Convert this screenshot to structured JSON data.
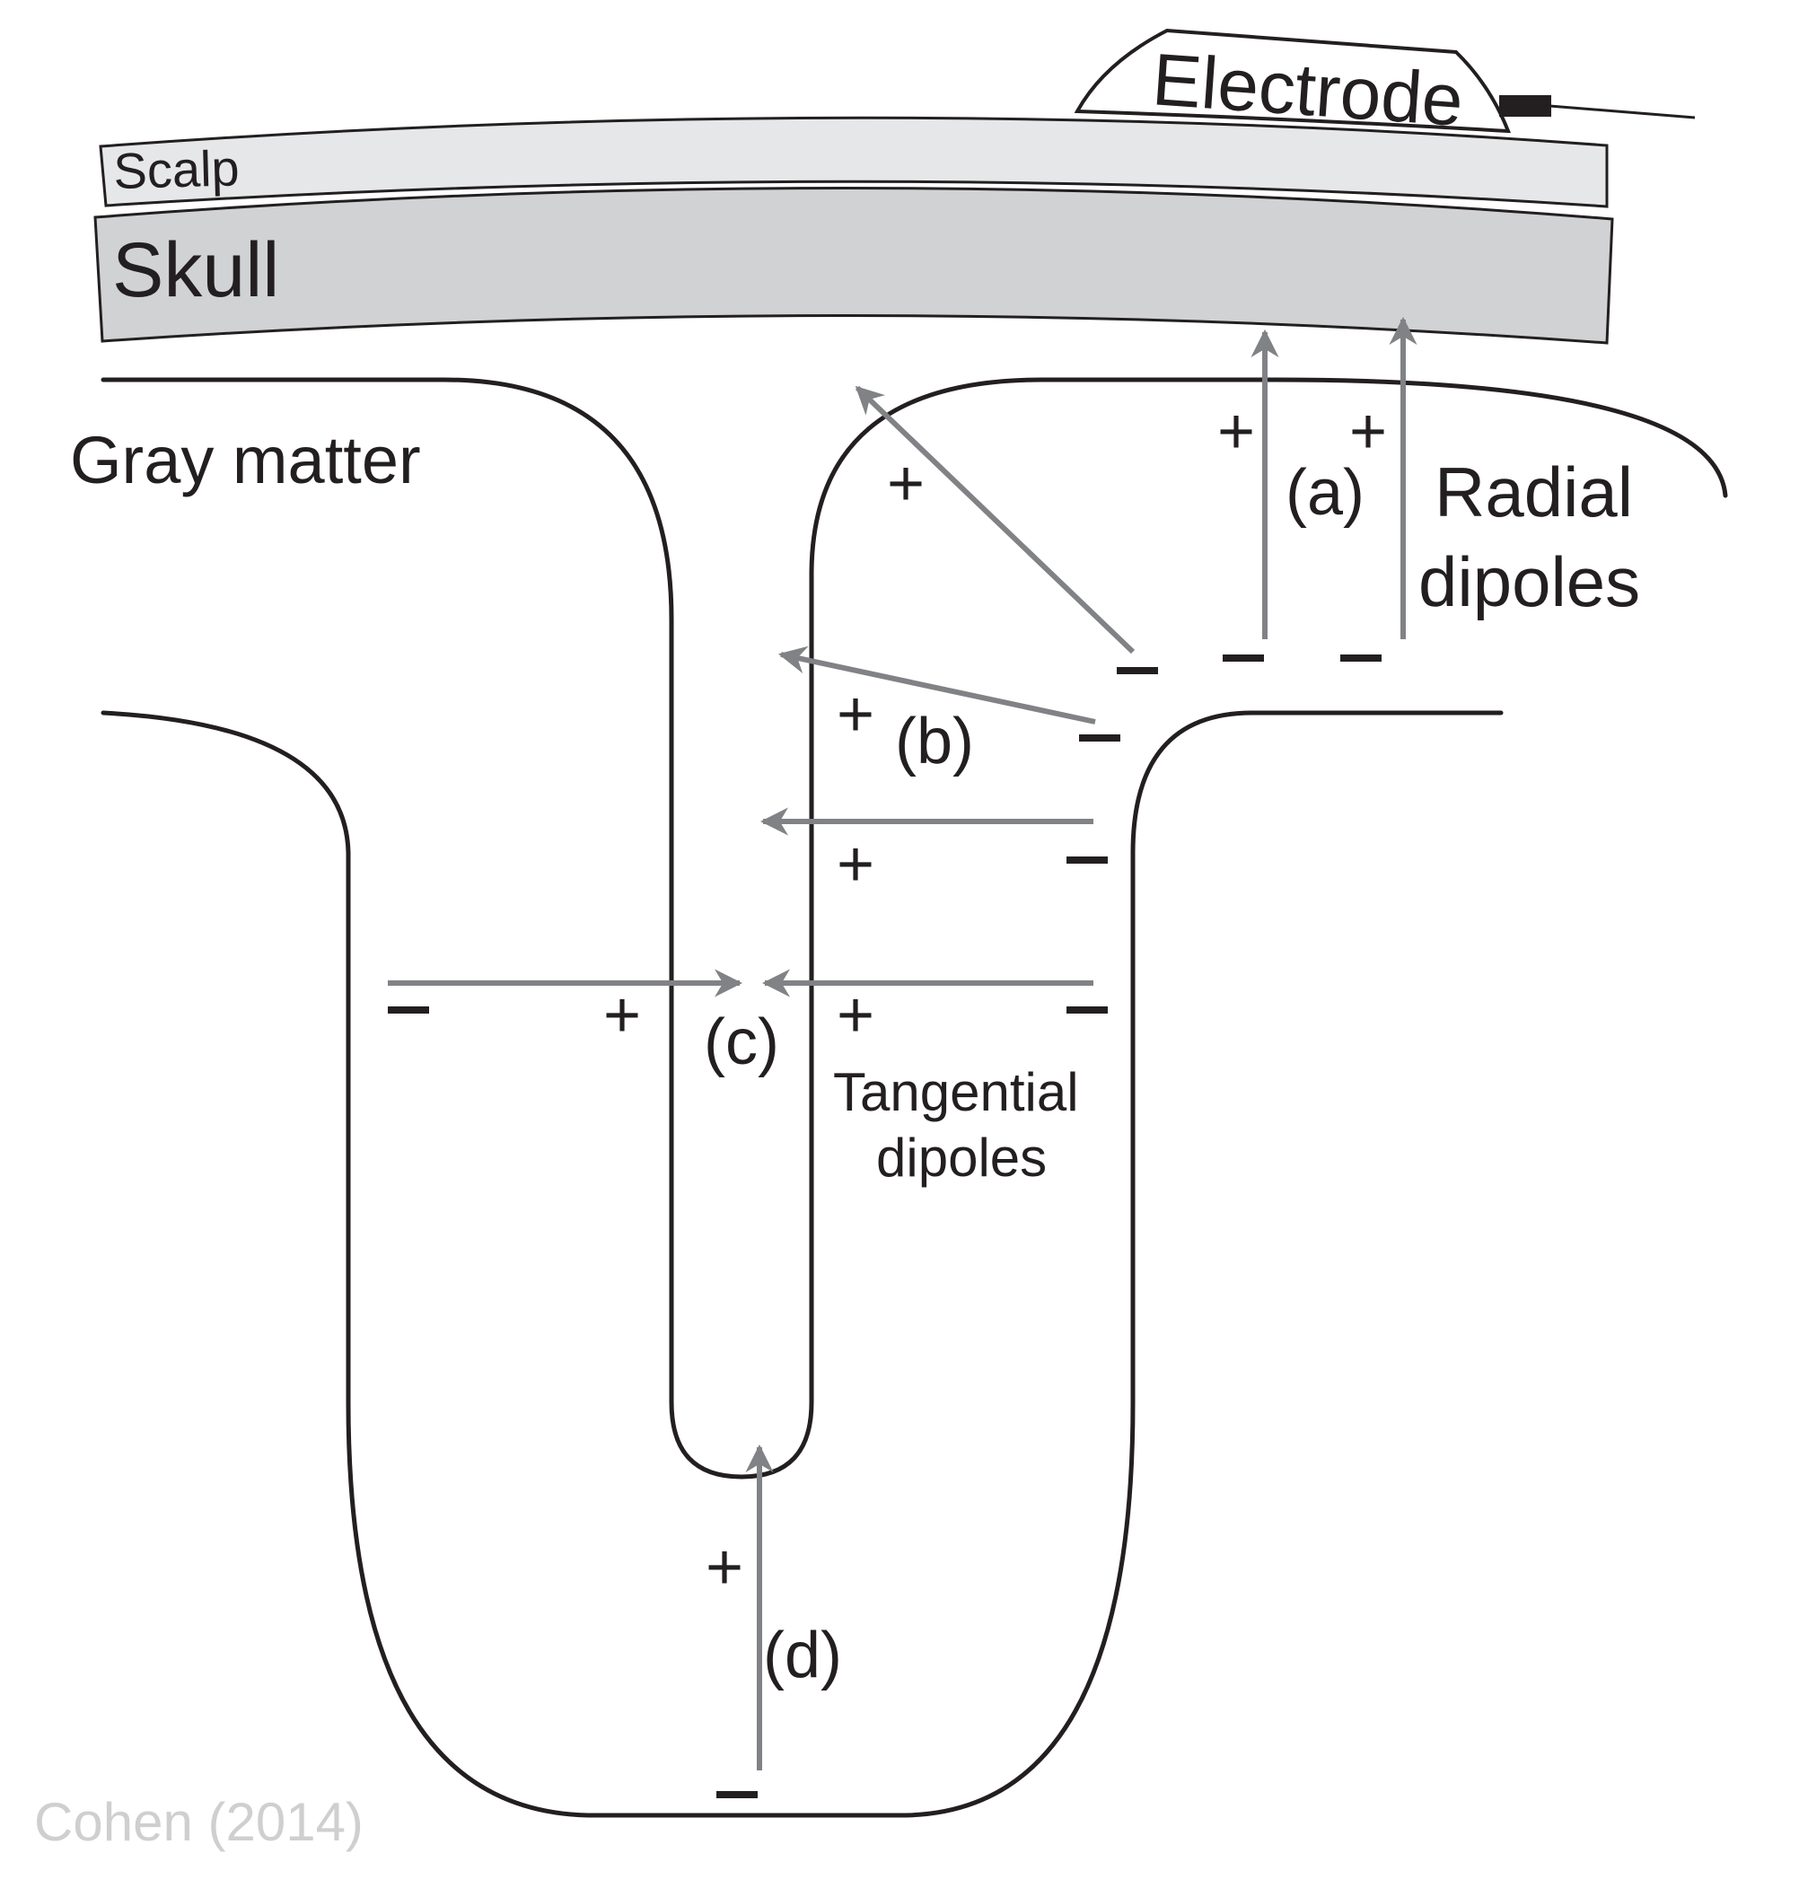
{
  "labels": {
    "electrode": "Electrode",
    "scalp": "Scalp",
    "skull": "Skull",
    "gray_matter": "Gray matter",
    "radial": "Radial",
    "radial_2": "dipoles",
    "tangential": "Tangential",
    "tangential_2": "dipoles",
    "a": "(a)",
    "b": "(b)",
    "c": "(c)",
    "d": "(d)"
  },
  "signs": {
    "plus": "+",
    "minus": "–"
  },
  "credit": "Cohen (2014)",
  "colors": {
    "outline": "#231f20",
    "arrow": "#818285",
    "scalp_fill": "#e6e7e8",
    "skull_fill": "#d1d2d4",
    "credit": "#cfcfcf"
  }
}
